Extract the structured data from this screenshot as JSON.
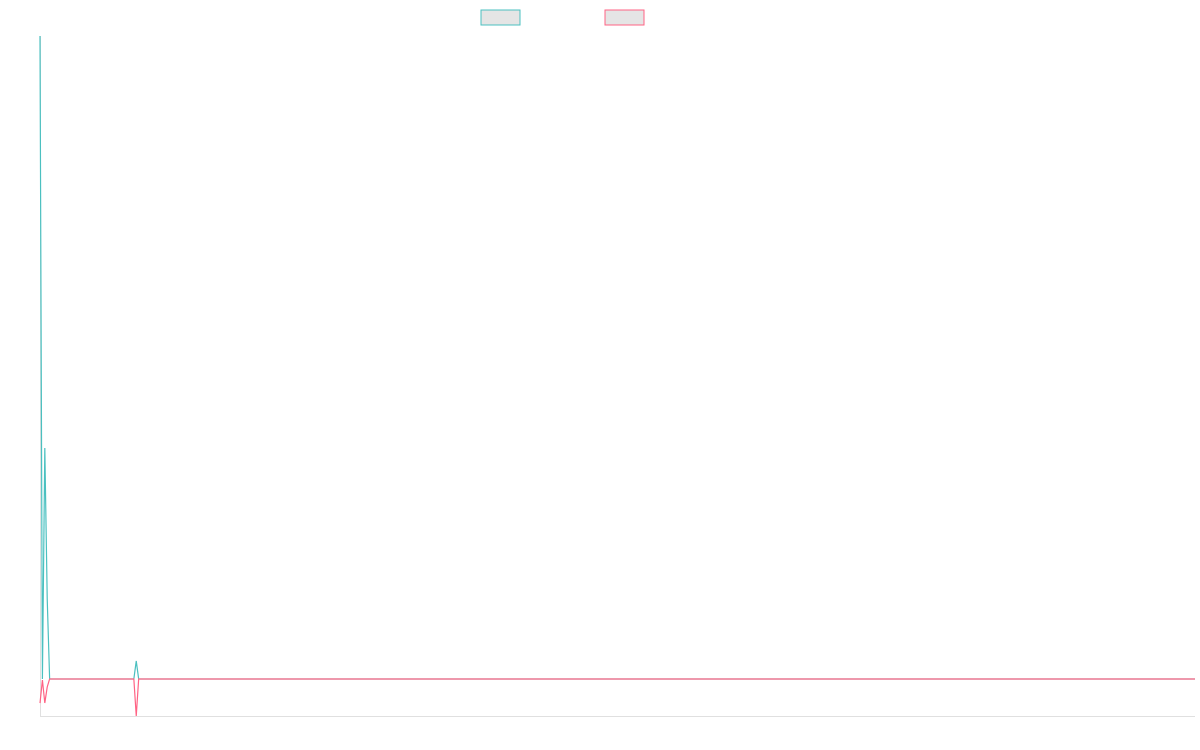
{
  "chart_data": {
    "type": "line",
    "title": "",
    "xlabel": "",
    "ylabel": "",
    "xlim": [
      0,
      480
    ],
    "ylim": [
      -37,
      643
    ],
    "grid": false,
    "legend": {
      "placement": "top",
      "show_labels": false
    },
    "series": [
      {
        "color": "#4bc0c0",
        "legend_fill": "#e5e5e5",
        "x": [
          0,
          1,
          2,
          3,
          4,
          39,
          40,
          41,
          480
        ],
        "y": [
          643,
          0,
          231,
          80,
          0,
          0,
          18,
          0,
          0
        ]
      },
      {
        "color": "#ff6384",
        "legend_fill": "#e5e5e5",
        "x": [
          0,
          1,
          2,
          3,
          4,
          39,
          40,
          41,
          480
        ],
        "y": [
          -24,
          -1,
          -24,
          -8,
          0,
          0,
          -37,
          0,
          0
        ]
      }
    ],
    "axis_color": "#e0e0e0"
  }
}
